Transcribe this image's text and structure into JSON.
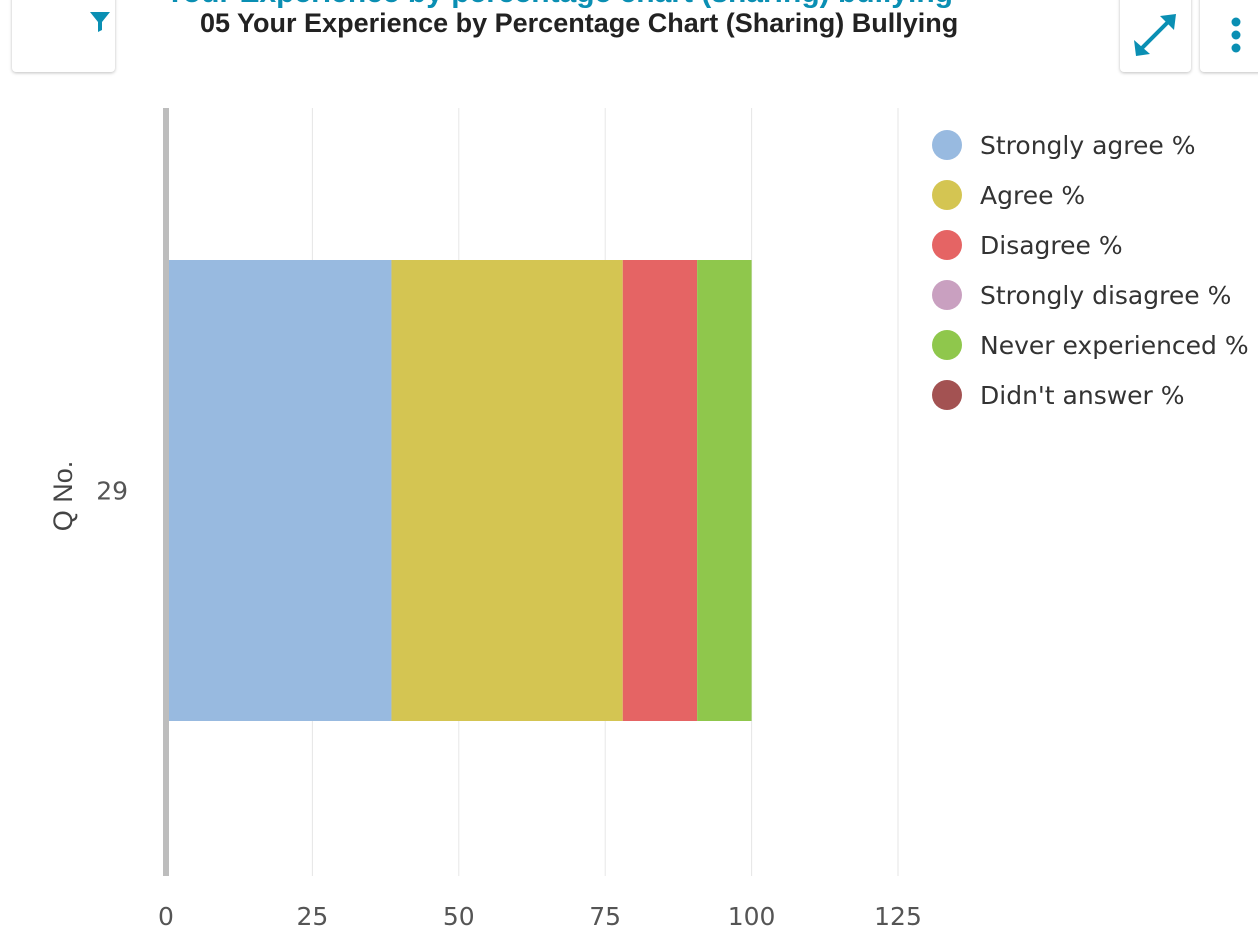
{
  "header": {
    "hidden_title": "Your Experience by percentage chart (sharing) bullying",
    "title": "05 Your Experience by Percentage Chart (Sharing) Bullying"
  },
  "toolbar": {
    "filter_icon": "filter-icon",
    "expand_icon": "expand-icon",
    "menu_icon": "more-vertical-icon"
  },
  "colors": {
    "accent": "#0a8fb3",
    "axis": "#bdbdbd",
    "grid": "#e6e6e6"
  },
  "chart_data": {
    "type": "bar",
    "orientation": "horizontal",
    "stacked": true,
    "ylabel": "Q No.",
    "categories": [
      "29"
    ],
    "xlim": [
      0,
      125
    ],
    "xticks": [
      0,
      25,
      50,
      75,
      100,
      125
    ],
    "grid": true,
    "legend_position": "right",
    "series": [
      {
        "name": "Strongly agree %",
        "color": "#98bae0",
        "values": [
          38.5
        ]
      },
      {
        "name": "Agree %",
        "color": "#d4c552",
        "values": [
          39.5
        ]
      },
      {
        "name": "Disagree %",
        "color": "#e56464",
        "values": [
          12.7
        ]
      },
      {
        "name": "Strongly disagree %",
        "color": "#c9a0c0",
        "values": [
          0
        ]
      },
      {
        "name": "Never experienced %",
        "color": "#8fc74c",
        "values": [
          9.3
        ]
      },
      {
        "name": "Didn't answer %",
        "color": "#a35252",
        "values": [
          0
        ]
      }
    ]
  }
}
